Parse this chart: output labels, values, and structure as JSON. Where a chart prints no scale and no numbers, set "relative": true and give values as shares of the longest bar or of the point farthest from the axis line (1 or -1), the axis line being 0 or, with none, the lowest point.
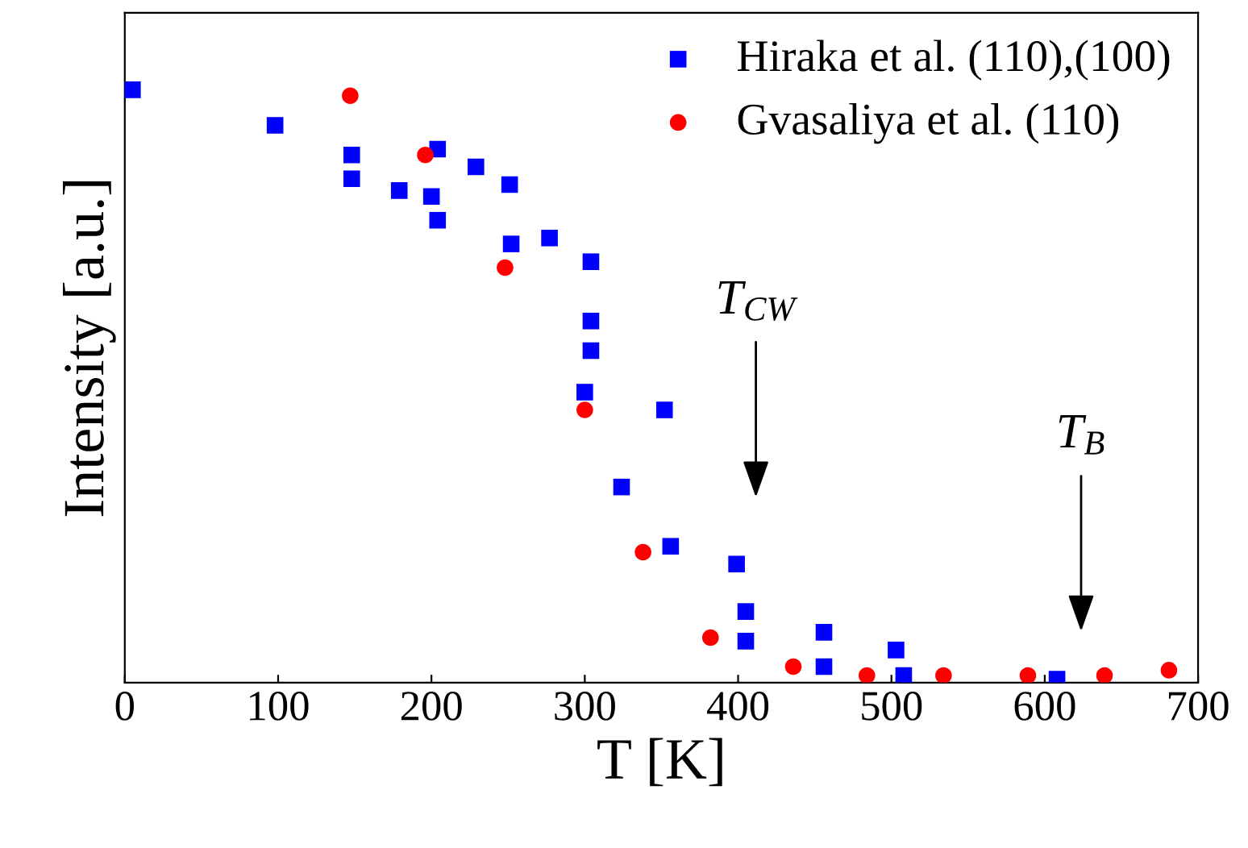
{
  "chart_data": {
    "type": "scatter",
    "relative": true,
    "xlabel": "T [K]",
    "ylabel": "Intensity [a.u.]",
    "xlim": [
      0,
      700
    ],
    "xticks": [
      0,
      100,
      200,
      300,
      400,
      500,
      600,
      700
    ],
    "tick_labels": "x",
    "legend": "top right",
    "grid": false,
    "series": [
      {
        "name": "Hiraka et al. (110),(100)",
        "color": "#0000ff",
        "marker": "square",
        "x": [
          5,
          98,
          148,
          148,
          179,
          200,
          204,
          204,
          229,
          251,
          252,
          277,
          304,
          304,
          304,
          300,
          352,
          324,
          356,
          399,
          405,
          405,
          456,
          456,
          503,
          508,
          608
        ],
        "values": [
          1.0,
          0.94,
          0.89,
          0.85,
          0.83,
          0.82,
          0.78,
          0.9,
          0.87,
          0.84,
          0.74,
          0.75,
          0.71,
          0.61,
          0.56,
          0.49,
          0.46,
          0.33,
          0.23,
          0.2,
          0.12,
          0.07,
          0.085,
          0.027,
          0.055,
          0.012,
          0.006
        ]
      },
      {
        "name": "Gvasaliya et al. (110)",
        "color": "#ff0000",
        "marker": "circle",
        "x": [
          147,
          196,
          248,
          300,
          338,
          382,
          436,
          484,
          534,
          589,
          639,
          681
        ],
        "values": [
          0.99,
          0.89,
          0.7,
          0.46,
          0.22,
          0.076,
          0.027,
          0.012,
          0.012,
          0.012,
          0.012,
          0.021
        ]
      }
    ],
    "annotations": [
      "T$_{CW}$",
      "T$_{B}$"
    ]
  }
}
